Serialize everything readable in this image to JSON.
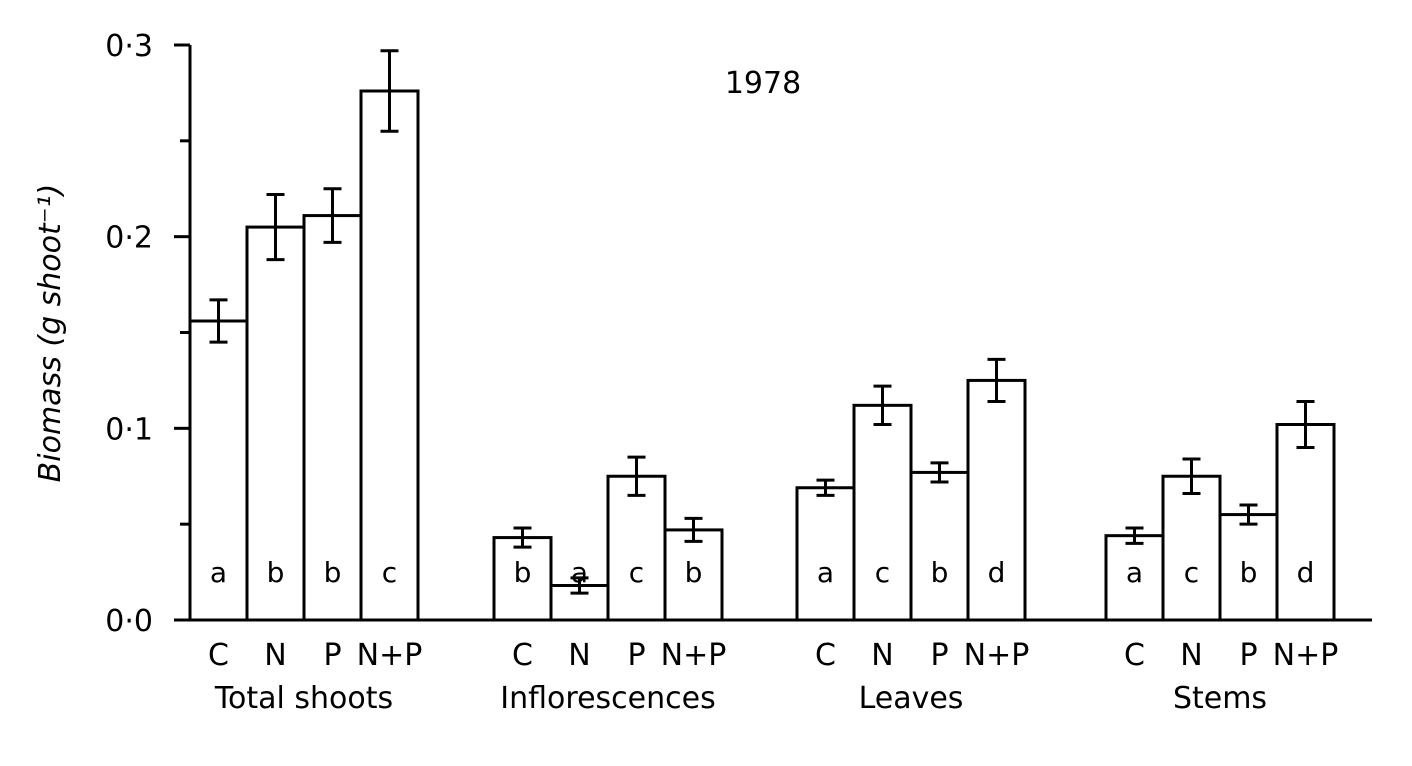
{
  "chart_data": {
    "type": "bar",
    "title": "1978",
    "ylabel": "Biomass (g shoot⁻¹)",
    "ylim": [
      0,
      0.3
    ],
    "yticks": [
      {
        "value": 0.0,
        "label": "0·0"
      },
      {
        "value": 0.1,
        "label": "0·1"
      },
      {
        "value": 0.2,
        "label": "0·2"
      },
      {
        "value": 0.3,
        "label": "0·3"
      }
    ],
    "yminor_ticks": [
      0.05,
      0.15,
      0.25
    ],
    "groups": [
      {
        "name": "Total shoots",
        "categories": [
          "C",
          "N",
          "P",
          "N+P"
        ],
        "values": [
          0.156,
          0.205,
          0.211,
          0.276
        ],
        "errors": [
          0.011,
          0.017,
          0.014,
          0.021
        ],
        "letters": [
          "a",
          "b",
          "b",
          "c"
        ]
      },
      {
        "name": "Inflorescences",
        "categories": [
          "C",
          "N",
          "P",
          "N+P"
        ],
        "values": [
          0.043,
          0.018,
          0.075,
          0.047
        ],
        "errors": [
          0.005,
          0.004,
          0.01,
          0.006
        ],
        "letters": [
          "b",
          "a",
          "c",
          "b"
        ]
      },
      {
        "name": "Leaves",
        "categories": [
          "C",
          "N",
          "P",
          "N+P"
        ],
        "values": [
          0.069,
          0.112,
          0.077,
          0.125
        ],
        "errors": [
          0.004,
          0.01,
          0.005,
          0.011
        ],
        "letters": [
          "a",
          "c",
          "b",
          "d"
        ]
      },
      {
        "name": "Stems",
        "categories": [
          "C",
          "N",
          "P",
          "N+P"
        ],
        "values": [
          0.044,
          0.075,
          0.055,
          0.102
        ],
        "errors": [
          0.004,
          0.009,
          0.005,
          0.012
        ],
        "letters": [
          "a",
          "c",
          "b",
          "d"
        ]
      }
    ]
  }
}
